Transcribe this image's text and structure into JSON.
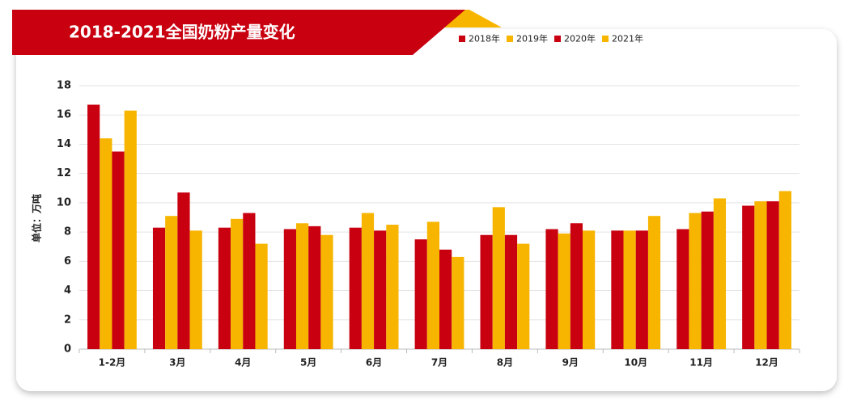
{
  "chart_data": {
    "type": "bar",
    "title": "2018-2021全国奶粉产量变化",
    "y_label": "单位：万吨",
    "categories": [
      "1-2月",
      "3月",
      "4月",
      "5月",
      "6月",
      "7月",
      "8月",
      "9月",
      "10月",
      "11月",
      "12月"
    ],
    "series": [
      {
        "name": "2018年",
        "color": "#c8000f",
        "values": [
          16.7,
          8.3,
          8.3,
          8.2,
          8.3,
          7.5,
          7.8,
          8.2,
          8.1,
          8.2,
          9.8
        ]
      },
      {
        "name": "2019年",
        "color": "#f7b500",
        "values": [
          14.4,
          9.1,
          8.9,
          8.6,
          9.3,
          8.7,
          9.7,
          7.9,
          8.1,
          9.3,
          10.1
        ]
      },
      {
        "name": "2020年",
        "color": "#c8000f",
        "values": [
          13.5,
          10.7,
          9.3,
          8.4,
          8.1,
          6.8,
          7.8,
          8.6,
          8.1,
          9.4,
          10.1
        ]
      },
      {
        "name": "2021年",
        "color": "#f7b500",
        "values": [
          16.3,
          8.1,
          7.2,
          7.8,
          8.5,
          6.3,
          7.2,
          8.1,
          9.1,
          10.3,
          10.8
        ]
      }
    ],
    "ylim": [
      0,
      18
    ],
    "yticks": [
      0,
      2,
      4,
      6,
      8,
      10,
      12,
      14,
      16,
      18
    ],
    "grid": true
  }
}
